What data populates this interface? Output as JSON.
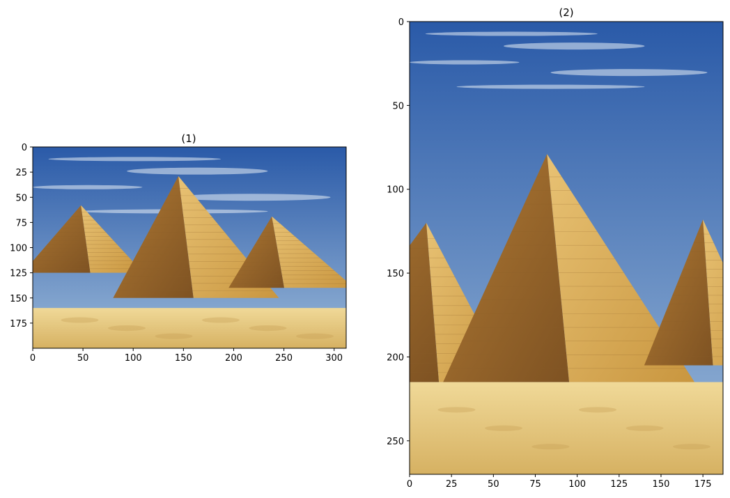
{
  "chart_data": [
    {
      "type": "image",
      "title": "(1)",
      "image_size": [
        312,
        200
      ],
      "xlim": [
        0,
        312
      ],
      "ylim": [
        200,
        0
      ],
      "x_ticks": [
        0,
        50,
        100,
        150,
        200,
        250,
        300
      ],
      "y_ticks": [
        0,
        25,
        50,
        75,
        100,
        125,
        150,
        175
      ],
      "pyramids": [
        {
          "apex": [
            48,
            58
          ],
          "base_left": [
            -10,
            125
          ],
          "base_right": [
            110,
            125
          ]
        },
        {
          "apex": [
            145,
            29
          ],
          "base_left": [
            80,
            150
          ],
          "base_right": [
            245,
            150
          ]
        },
        {
          "apex": [
            238,
            69
          ],
          "base_left": [
            195,
            140
          ],
          "base_right": [
            320,
            140
          ]
        }
      ],
      "horizon": 160
    },
    {
      "type": "image",
      "title": "(2)",
      "image_size": [
        187,
        270
      ],
      "xlim": [
        0,
        187
      ],
      "ylim": [
        270,
        0
      ],
      "x_ticks": [
        0,
        25,
        50,
        75,
        100,
        125,
        150,
        175
      ],
      "y_ticks": [
        0,
        50,
        100,
        150,
        200,
        250
      ],
      "pyramids": [
        {
          "apex": [
            10,
            120
          ],
          "base_left": [
            -60,
            215
          ],
          "base_right": [
            60,
            215
          ]
        },
        {
          "apex": [
            82,
            79
          ],
          "base_left": [
            20,
            215
          ],
          "base_right": [
            170,
            215
          ]
        },
        {
          "apex": [
            175,
            118
          ],
          "base_left": [
            140,
            205
          ],
          "base_right": [
            215,
            205
          ]
        }
      ],
      "horizon": 215
    }
  ],
  "colors": {
    "sky_top": "#2a5aa8",
    "sky_bottom": "#8fb2d6",
    "pyramid_light": "#d9b15e",
    "pyramid_dark": "#9a6a2c",
    "sand_light": "#f0d998",
    "sand_dark": "#d8b565"
  }
}
